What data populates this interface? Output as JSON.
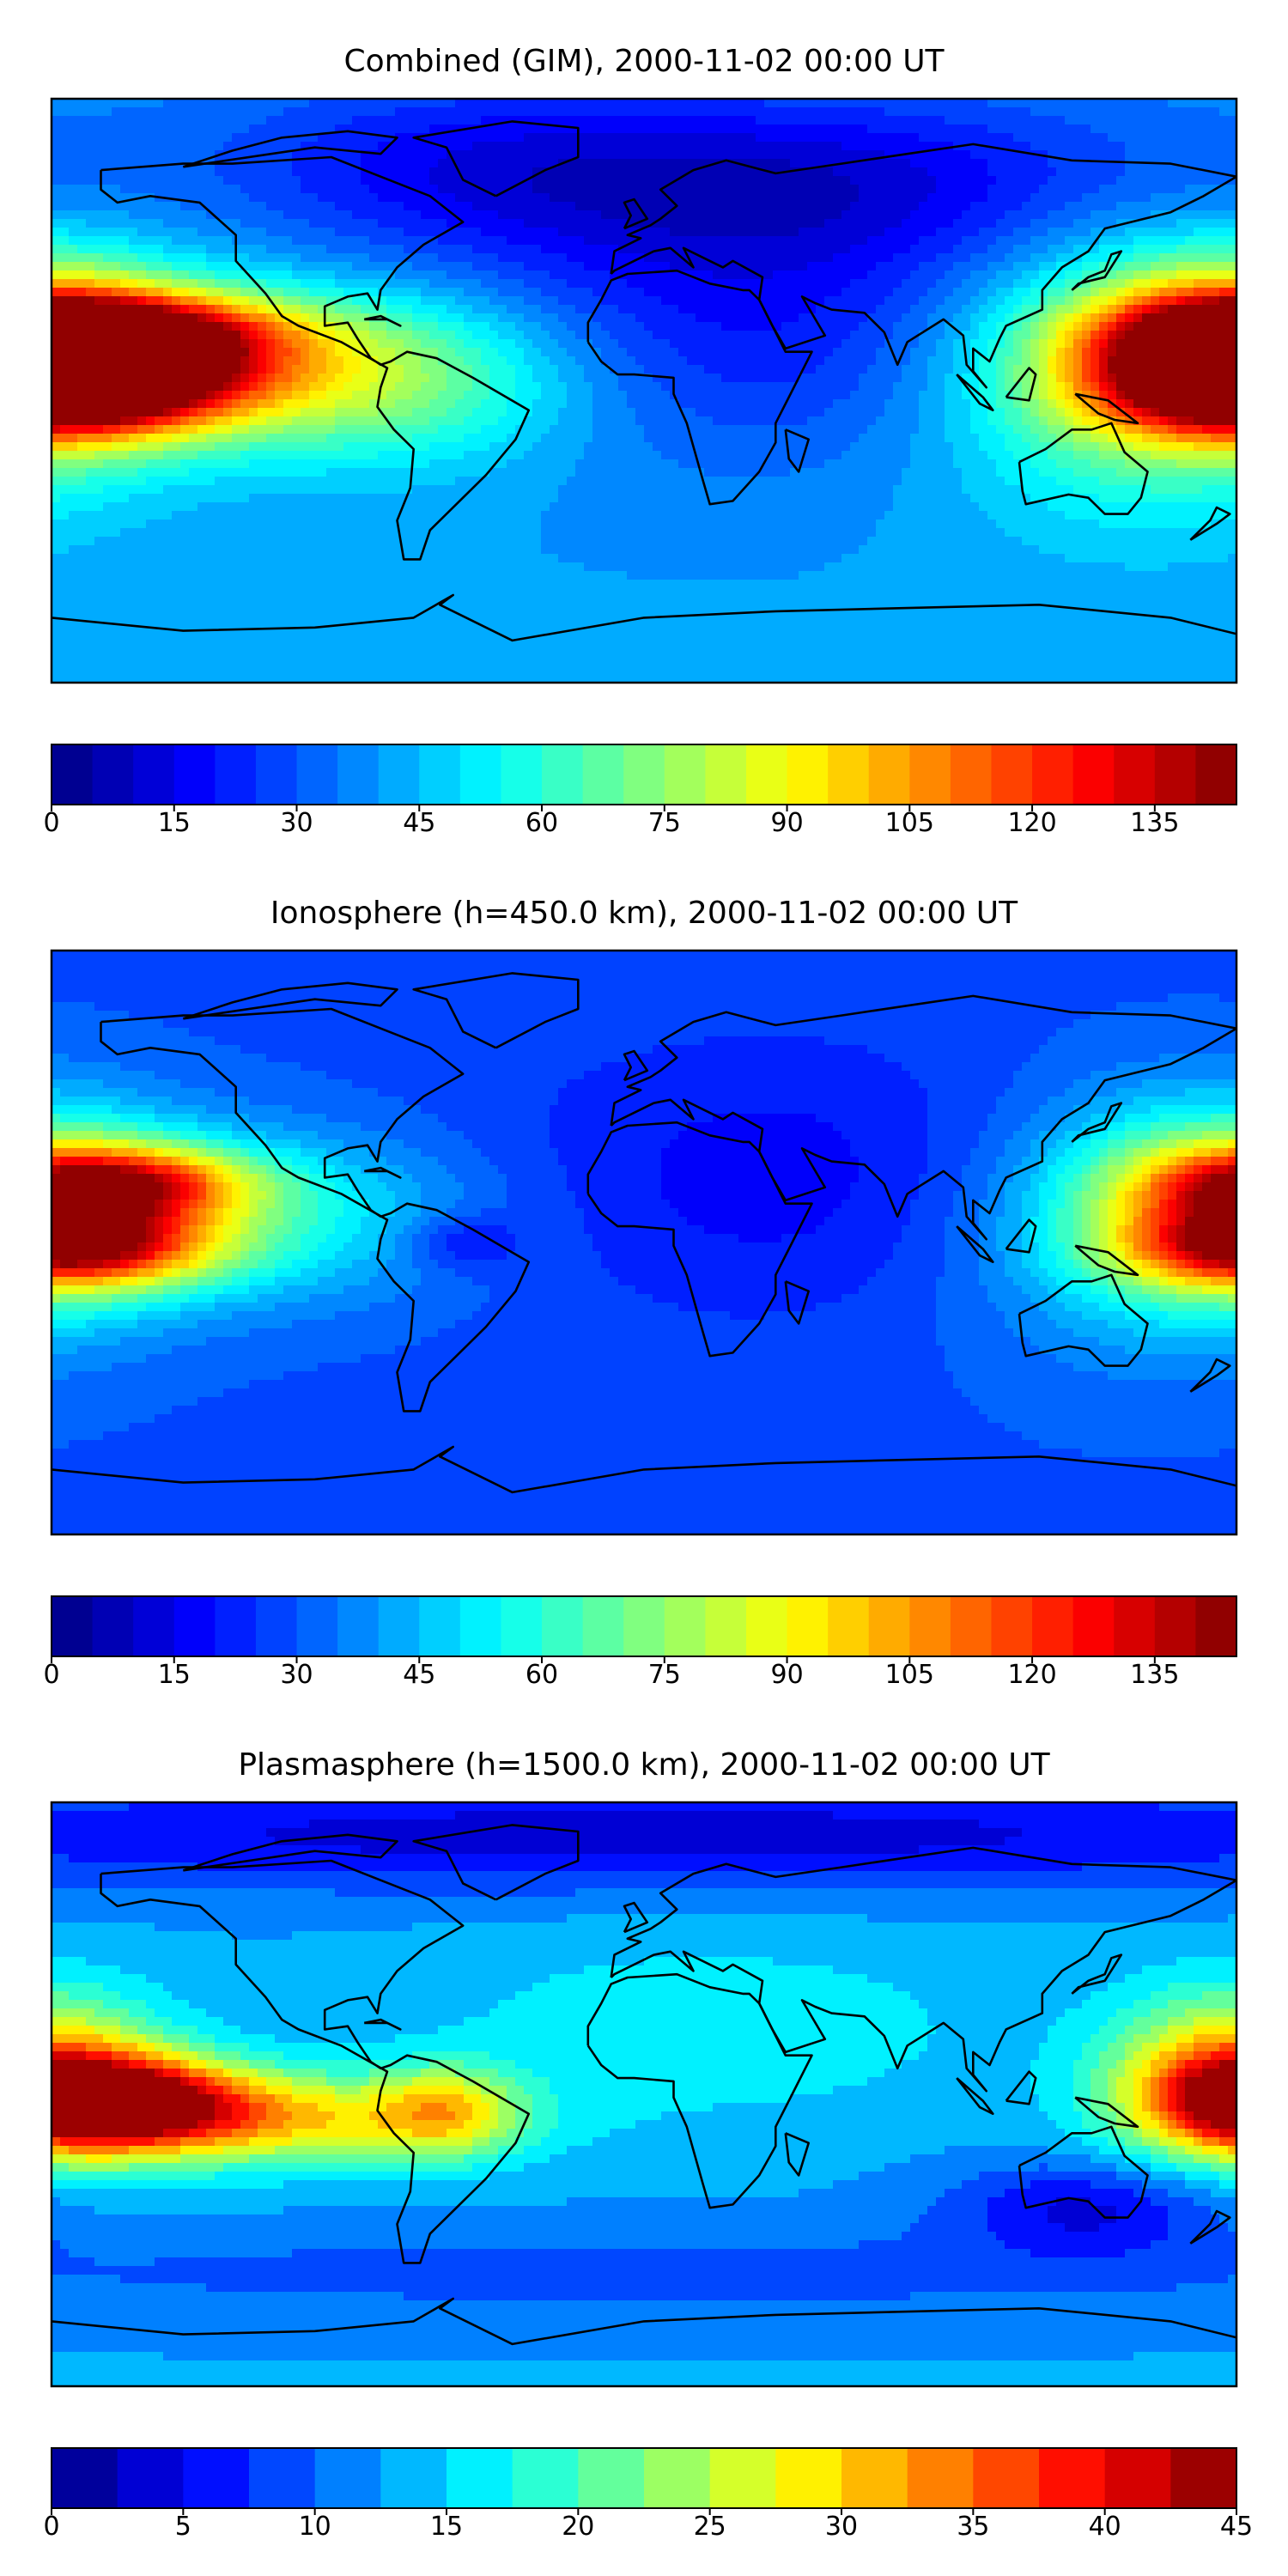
{
  "panels": [
    {
      "title": "Combined (GIM), 2000-11-02 00:00 UT",
      "colorbar": {
        "min": 0,
        "max": 145,
        "levels": 29,
        "ticks": [
          "0",
          "15",
          "30",
          "45",
          "60",
          "75",
          "90",
          "105",
          "120",
          "135"
        ],
        "tick_values": [
          0,
          15,
          30,
          45,
          60,
          75,
          90,
          105,
          120,
          135
        ]
      },
      "field": {
        "base": 0.28,
        "blobs": [
          {
            "lon": -170,
            "lat": 2,
            "a": 0.55,
            "sx": 32,
            "sy": 10
          },
          {
            "lon": -160,
            "lat": 18,
            "a": 0.45,
            "sx": 35,
            "sy": 8
          },
          {
            "lon": -130,
            "lat": 8,
            "a": 0.3,
            "sx": 55,
            "sy": 16
          },
          {
            "lon": -70,
            "lat": 0,
            "a": 0.12,
            "sx": 40,
            "sy": 18
          },
          {
            "lon": 178,
            "lat": 12,
            "a": 0.45,
            "sx": 30,
            "sy": 18
          },
          {
            "lon": 150,
            "lat": 5,
            "a": 0.22,
            "sx": 40,
            "sy": 30
          },
          {
            "lon": 30,
            "lat": 20,
            "a": -0.14,
            "sx": 60,
            "sy": 30
          },
          {
            "lon": 60,
            "lat": 65,
            "a": -0.16,
            "sx": 80,
            "sy": 20
          },
          {
            "lon": -60,
            "lat": 70,
            "a": -0.12,
            "sx": 60,
            "sy": 20
          }
        ]
      }
    },
    {
      "title": "Ionosphere  (h=450.0 km), 2000-11-02 00:00 UT",
      "colorbar": {
        "min": 0,
        "max": 145,
        "levels": 29,
        "ticks": [
          "0",
          "15",
          "30",
          "45",
          "60",
          "75",
          "90",
          "105",
          "120",
          "135"
        ],
        "tick_values": [
          0,
          15,
          30,
          45,
          60,
          75,
          90,
          105,
          120,
          135
        ]
      },
      "field": {
        "base": 0.2,
        "blobs": [
          {
            "lon": -160,
            "lat": 18,
            "a": 0.45,
            "sx": 28,
            "sy": 8
          },
          {
            "lon": -170,
            "lat": -2,
            "a": 0.42,
            "sx": 28,
            "sy": 8
          },
          {
            "lon": -130,
            "lat": 8,
            "a": 0.22,
            "sx": 50,
            "sy": 18
          },
          {
            "lon": 175,
            "lat": 10,
            "a": 0.35,
            "sx": 30,
            "sy": 20
          },
          {
            "lon": 150,
            "lat": 5,
            "a": 0.12,
            "sx": 40,
            "sy": 30
          },
          {
            "lon": -55,
            "lat": 0,
            "a": -0.1,
            "sx": 12,
            "sy": 6
          },
          {
            "lon": 40,
            "lat": 20,
            "a": -0.08,
            "sx": 60,
            "sy": 30
          }
        ]
      }
    },
    {
      "title": "Plasmasphere (h=1500.0 km), 2000-11-02 00:00 UT",
      "colorbar": {
        "min": 0,
        "max": 45,
        "levels": 18,
        "ticks": [
          "0",
          "5",
          "10",
          "15",
          "20",
          "25",
          "30",
          "35",
          "40",
          "45"
        ],
        "tick_values": [
          0,
          5,
          10,
          15,
          20,
          25,
          30,
          35,
          40,
          45
        ]
      },
      "field": {
        "base": 0.28,
        "blobs": [
          {
            "lon": -160,
            "lat": -2,
            "a": 0.6,
            "sx": 28,
            "sy": 10
          },
          {
            "lon": -110,
            "lat": -8,
            "a": 0.35,
            "sx": 45,
            "sy": 10
          },
          {
            "lon": -60,
            "lat": -5,
            "a": 0.25,
            "sx": 15,
            "sy": 10
          },
          {
            "lon": 178,
            "lat": 5,
            "a": 0.45,
            "sx": 25,
            "sy": 18
          },
          {
            "lon": 20,
            "lat": 20,
            "a": 0.1,
            "sx": 60,
            "sy": 20
          },
          {
            "lon": 135,
            "lat": -35,
            "a": -0.18,
            "sx": 30,
            "sy": 10
          },
          {
            "lon": 0,
            "lat": 80,
            "a": -0.2,
            "sx": 200,
            "sy": 12
          },
          {
            "lon": 0,
            "lat": -55,
            "a": -0.08,
            "sx": 200,
            "sy": 10
          }
        ]
      }
    }
  ],
  "continent_outlines": [
    [
      [
        -165,
        68
      ],
      [
        -140,
        70
      ],
      [
        -125,
        70
      ],
      [
        -95,
        72
      ],
      [
        -80,
        66
      ],
      [
        -65,
        60
      ],
      [
        -55,
        52
      ],
      [
        -67,
        45
      ],
      [
        -75,
        38
      ],
      [
        -80,
        31
      ],
      [
        -81,
        25
      ],
      [
        -84,
        30
      ],
      [
        -90,
        29
      ],
      [
        -97,
        26
      ],
      [
        -97,
        20
      ],
      [
        -90,
        21
      ],
      [
        -87,
        16
      ],
      [
        -83,
        10
      ],
      [
        -80,
        8
      ],
      [
        -77,
        9
      ],
      [
        -72,
        12
      ],
      [
        -63,
        10
      ],
      [
        -52,
        4
      ],
      [
        -35,
        -6
      ],
      [
        -39,
        -15
      ],
      [
        -48,
        -26
      ],
      [
        -57,
        -35
      ],
      [
        -65,
        -43
      ],
      [
        -68,
        -52
      ],
      [
        -73,
        -52
      ],
      [
        -75,
        -40
      ],
      [
        -71,
        -30
      ],
      [
        -70,
        -18
      ],
      [
        -76,
        -12
      ],
      [
        -81,
        -5
      ],
      [
        -80,
        1
      ],
      [
        -78,
        7
      ],
      [
        -92,
        15
      ],
      [
        -105,
        20
      ],
      [
        -110,
        23
      ],
      [
        -115,
        30
      ],
      [
        -124,
        40
      ],
      [
        -124,
        48
      ],
      [
        -135,
        58
      ],
      [
        -150,
        60
      ],
      [
        -160,
        58
      ],
      [
        -165,
        62
      ],
      [
        -165,
        68
      ]
    ],
    [
      [
        -17,
        15
      ],
      [
        -17,
        21
      ],
      [
        -13,
        28
      ],
      [
        -10,
        34
      ],
      [
        -5,
        36
      ],
      [
        10,
        37
      ],
      [
        20,
        33
      ],
      [
        30,
        31
      ],
      [
        32,
        31
      ],
      [
        35,
        28
      ],
      [
        43,
        12
      ],
      [
        51,
        12
      ],
      [
        44,
        -2
      ],
      [
        40,
        -10
      ],
      [
        40,
        -16
      ],
      [
        35,
        -25
      ],
      [
        27,
        -34
      ],
      [
        20,
        -35
      ],
      [
        18,
        -28
      ],
      [
        13,
        -10
      ],
      [
        9,
        -1
      ],
      [
        9,
        4
      ],
      [
        -3,
        5
      ],
      [
        -8,
        5
      ],
      [
        -13,
        9
      ],
      [
        -17,
        15
      ]
    ],
    [
      [
        -10,
        36
      ],
      [
        -9,
        43
      ],
      [
        -1,
        47
      ],
      [
        -5,
        48
      ],
      [
        2,
        51
      ],
      [
        5,
        53
      ],
      [
        10,
        57
      ],
      [
        5,
        62
      ],
      [
        15,
        68
      ],
      [
        25,
        71
      ],
      [
        40,
        67
      ],
      [
        60,
        70
      ],
      [
        80,
        73
      ],
      [
        100,
        76
      ],
      [
        130,
        71
      ],
      [
        160,
        70
      ],
      [
        180,
        66
      ],
      [
        170,
        60
      ],
      [
        160,
        55
      ],
      [
        140,
        50
      ],
      [
        135,
        43
      ],
      [
        127,
        38
      ],
      [
        121,
        31
      ],
      [
        121,
        25
      ],
      [
        110,
        20
      ],
      [
        108,
        16
      ],
      [
        105,
        9
      ],
      [
        100,
        13
      ],
      [
        100,
        6
      ],
      [
        104,
        1
      ],
      [
        98,
        8
      ],
      [
        97,
        17
      ],
      [
        91,
        22
      ],
      [
        80,
        15
      ],
      [
        77,
        8
      ],
      [
        73,
        18
      ],
      [
        67,
        24
      ],
      [
        57,
        25
      ],
      [
        52,
        27
      ],
      [
        48,
        29
      ],
      [
        55,
        17
      ],
      [
        43,
        13
      ],
      [
        39,
        20
      ],
      [
        35,
        28
      ],
      [
        36,
        35
      ],
      [
        27,
        40
      ],
      [
        24,
        38
      ],
      [
        20,
        40
      ],
      [
        12,
        44
      ],
      [
        15,
        38
      ],
      [
        8,
        44
      ],
      [
        3,
        43
      ],
      [
        -9,
        37
      ],
      [
        -10,
        36
      ]
    ],
    [
      [
        114,
        -22
      ],
      [
        122,
        -18
      ],
      [
        130,
        -12
      ],
      [
        136,
        -12
      ],
      [
        142,
        -10
      ],
      [
        146,
        -19
      ],
      [
        153,
        -25
      ],
      [
        151,
        -33
      ],
      [
        147,
        -38
      ],
      [
        140,
        -38
      ],
      [
        135,
        -33
      ],
      [
        129,
        -32
      ],
      [
        116,
        -35
      ],
      [
        115,
        -31
      ],
      [
        114,
        -22
      ]
    ],
    [
      [
        -180,
        -70
      ],
      [
        -140,
        -74
      ],
      [
        -100,
        -73
      ],
      [
        -70,
        -70
      ],
      [
        -58,
        -63
      ],
      [
        -62,
        -66
      ],
      [
        -40,
        -77
      ],
      [
        0,
        -70
      ],
      [
        40,
        -68
      ],
      [
        80,
        -67
      ],
      [
        120,
        -66
      ],
      [
        160,
        -70
      ],
      [
        180,
        -75
      ]
    ],
    [
      [
        -45,
        60
      ],
      [
        -55,
        65
      ],
      [
        -60,
        75
      ],
      [
        -70,
        78
      ],
      [
        -40,
        83
      ],
      [
        -20,
        81
      ],
      [
        -20,
        72
      ],
      [
        -30,
        68
      ],
      [
        -45,
        60
      ]
    ],
    [
      [
        -6,
        50
      ],
      [
        -4,
        54
      ],
      [
        -6,
        58
      ],
      [
        -3,
        59
      ],
      [
        1,
        53
      ],
      [
        -6,
        50
      ]
    ],
    [
      [
        130,
        31
      ],
      [
        135,
        35
      ],
      [
        140,
        37
      ],
      [
        142,
        42
      ],
      [
        145,
        43
      ],
      [
        140,
        35
      ],
      [
        132,
        33
      ],
      [
        130,
        31
      ]
    ],
    [
      [
        95,
        5
      ],
      [
        103,
        -2
      ],
      [
        106,
        -6
      ],
      [
        102,
        -4
      ],
      [
        95,
        5
      ]
    ],
    [
      [
        110,
        -2
      ],
      [
        117,
        7
      ],
      [
        119,
        5
      ],
      [
        117,
        -3
      ],
      [
        110,
        -2
      ]
    ],
    [
      [
        131,
        -1
      ],
      [
        141,
        -3
      ],
      [
        150,
        -10
      ],
      [
        143,
        -9
      ],
      [
        138,
        -7
      ],
      [
        131,
        -1
      ]
    ],
    [
      [
        43,
        -12
      ],
      [
        50,
        -15
      ],
      [
        47,
        -25
      ],
      [
        44,
        -21
      ],
      [
        43,
        -12
      ]
    ],
    [
      [
        166,
        -46
      ],
      [
        174,
        -41
      ],
      [
        178,
        -38
      ],
      [
        174,
        -36
      ],
      [
        172,
        -40
      ],
      [
        166,
        -46
      ]
    ],
    [
      [
        -85,
        22
      ],
      [
        -78,
        22
      ],
      [
        -74,
        20
      ],
      [
        -80,
        23
      ],
      [
        -85,
        22
      ]
    ],
    [
      [
        -140,
        69
      ],
      [
        -100,
        75
      ],
      [
        -80,
        73
      ],
      [
        -75,
        78
      ],
      [
        -90,
        80
      ],
      [
        -110,
        78
      ],
      [
        -125,
        74
      ],
      [
        -140,
        69
      ]
    ]
  ]
}
